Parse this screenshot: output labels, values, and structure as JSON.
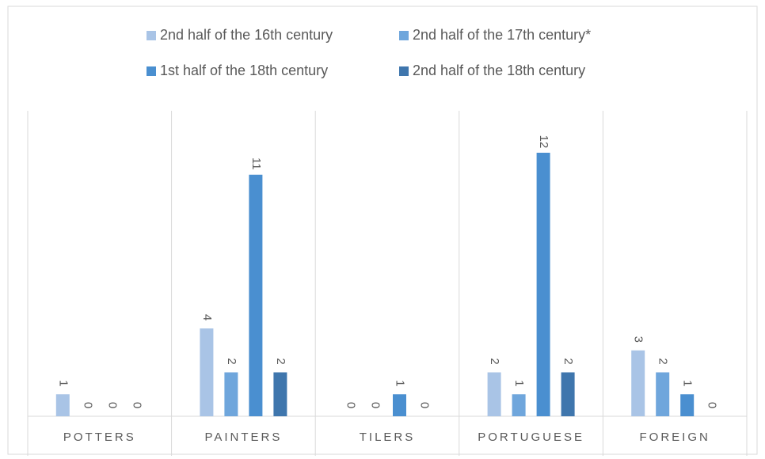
{
  "chart_data": {
    "type": "bar",
    "categories": [
      "POTTERS",
      "PAINTERS",
      "TILERS",
      "PORTUGUESE",
      "FOREIGN"
    ],
    "series": [
      {
        "name": "2nd half of the 16th century",
        "color": "#a9c4e6",
        "values": [
          1,
          4,
          0,
          2,
          3
        ]
      },
      {
        "name": "2nd half of the 17th century*",
        "color": "#6fa6dc",
        "values": [
          0,
          2,
          0,
          1,
          2
        ]
      },
      {
        "name": "1st half of the 18th century",
        "color": "#4a8fd0",
        "values": [
          0,
          11,
          1,
          12,
          1
        ]
      },
      {
        "name": "2nd half of the 18th century",
        "color": "#3f76ad",
        "values": [
          0,
          2,
          0,
          2,
          0
        ]
      }
    ],
    "legend": "top"
  }
}
